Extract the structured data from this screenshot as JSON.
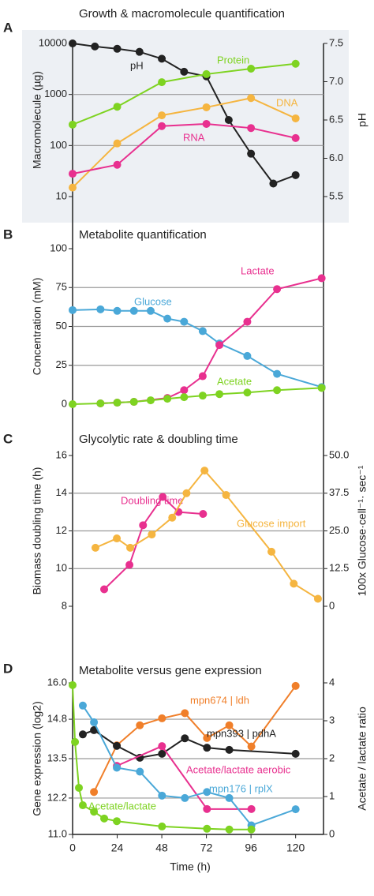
{
  "chart_data": [
    {
      "type": "line",
      "letter": "A",
      "title": "Growth & macromolecule quantification",
      "ylabel": "Macromolecule (µg)",
      "y2label": "pH",
      "ylog": true,
      "xlim": [
        0,
        135
      ],
      "ylim": [
        10,
        10000
      ],
      "yticks": [
        10,
        100,
        1000,
        10000
      ],
      "y2lim": [
        5.5,
        7.5
      ],
      "y2ticks": [
        5.5,
        {
          "value": 6.0,
          "label": "6.0"
        },
        6.5,
        {
          "value": 7.0,
          "label": "7.0"
        },
        7.5
      ],
      "grid": true,
      "series": [
        {
          "name": "pH",
          "color": "#222222",
          "axis": "y2",
          "x": [
            0,
            12,
            24,
            36,
            48,
            60,
            72,
            84,
            96,
            108,
            120
          ],
          "values": [
            7.5,
            7.46,
            7.43,
            7.39,
            7.3,
            7.13,
            7.07,
            6.5,
            6.06,
            5.67,
            5.78
          ]
        },
        {
          "name": "Protein",
          "color": "#7ed321",
          "x": [
            0,
            24,
            48,
            72,
            96,
            120
          ],
          "values": [
            257,
            575,
            1740,
            2500,
            3200,
            4000
          ]
        },
        {
          "name": "DNA",
          "color": "#f5b540",
          "x": [
            0,
            24,
            48,
            72,
            96,
            120
          ],
          "values": [
            15,
            110,
            390,
            560,
            850,
            340
          ]
        },
        {
          "name": "RNA",
          "color": "#e8308f",
          "x": [
            0,
            24,
            48,
            72,
            96,
            120
          ],
          "values": [
            28,
            42,
            240,
            265,
            220,
            140
          ]
        }
      ]
    },
    {
      "type": "line",
      "letter": "B",
      "title": "Metabolite quantification",
      "ylabel": "Concentration (mM)",
      "xlim": [
        0,
        135
      ],
      "ylim": [
        0,
        100
      ],
      "yticks": [
        0,
        25,
        50,
        75,
        100
      ],
      "grid": true,
      "series": [
        {
          "name": "Glucose",
          "color": "#4aa8d8",
          "x": [
            0,
            15,
            24,
            33,
            42,
            51,
            60,
            70,
            79,
            94,
            110,
            134
          ],
          "values": [
            60.5,
            61,
            60,
            60,
            60,
            55,
            53,
            47,
            39,
            31,
            19.5,
            11
          ]
        },
        {
          "name": "Lactate",
          "color": "#e8308f",
          "x": [
            15,
            24,
            33,
            51,
            60,
            70,
            79,
            94,
            110,
            134
          ],
          "values": [
            0.5,
            1,
            1.5,
            4,
            9,
            18,
            38,
            53,
            74,
            81
          ]
        },
        {
          "name": "Acetate",
          "color": "#7ed321",
          "x": [
            0,
            15,
            24,
            33,
            42,
            51,
            60,
            70,
            79,
            94,
            110,
            134
          ],
          "values": [
            0,
            0.5,
            1,
            1.5,
            2.5,
            3.5,
            4.5,
            5.5,
            6.5,
            7.5,
            9,
            10.5
          ]
        }
      ]
    },
    {
      "type": "line",
      "letter": "C",
      "title": "Glycolytic rate & doubling time",
      "ylabel": "Biomass doubling time (h)",
      "y2label": "100x Glucose·cell⁻¹· sec⁻¹",
      "xlim": [
        0,
        135
      ],
      "ylim": [
        8,
        16
      ],
      "yticks": [
        8,
        10,
        12,
        14,
        16
      ],
      "y2lim": [
        0,
        50
      ],
      "y2ticks": [
        0,
        12.5,
        {
          "value": 25,
          "label": "25.0"
        },
        37.5,
        {
          "value": 50,
          "label": "50.0"
        }
      ],
      "grid": true,
      "series": [
        {
          "name": "Doubling time",
          "color": "#e8308f",
          "x": [
            17,
            30.6,
            37.9,
            48.5,
            57,
            70.2
          ],
          "values": [
            8.9,
            10.2,
            12.3,
            13.8,
            13,
            12.9
          ]
        },
        {
          "name": "Glucose import",
          "color": "#f5b540",
          "axis": "y2",
          "x": [
            12.3,
            23.8,
            31,
            42.6,
            53.6,
            61.3,
            71,
            82.6,
            107,
            119,
            132
          ],
          "values": [
            19.4,
            22.5,
            19.4,
            23.8,
            29.4,
            37.5,
            45,
            36.9,
            18.1,
            7.5,
            2.5
          ]
        }
      ]
    },
    {
      "type": "line",
      "letter": "D",
      "title": "Metabolite versus gene expression",
      "ylabel": "Gene expression (log2)",
      "y2label": "Acetate / lactate ratio",
      "xlabel": "Time (h)",
      "xlim": [
        0,
        135
      ],
      "xticks": [
        0,
        24,
        48,
        72,
        96,
        120
      ],
      "ylim": [
        11,
        16
      ],
      "yticks": [
        {
          "value": 11,
          "label": "11.0"
        },
        12.2,
        13.5,
        14.8,
        {
          "value": 16,
          "label": "16.0"
        }
      ],
      "y2lim": [
        0,
        4
      ],
      "y2ticks": [
        0,
        1,
        2,
        3,
        4
      ],
      "grid": true,
      "series": [
        {
          "name": "mpn674 | ldh",
          "color": "#f07f2a",
          "x": [
            11.5,
            23.8,
            36.2,
            48.1,
            60.4,
            72.3,
            84.3,
            96.2,
            120
          ],
          "values": [
            12.4,
            13.94,
            14.6,
            14.83,
            15.0,
            14.18,
            14.6,
            13.9,
            15.9
          ]
        },
        {
          "name": "mpn393 | pdhA",
          "color": "#222222",
          "x": [
            5.5,
            11.5,
            23.8,
            36.2,
            48.1,
            60.4,
            72.3,
            84.3,
            120
          ],
          "values": [
            14.3,
            14.44,
            13.92,
            13.53,
            13.66,
            14.17,
            13.86,
            13.79,
            13.66
          ]
        },
        {
          "name": "Acetate/lactate aerobic",
          "color": "#e8308f",
          "axis": "y2",
          "x": [
            23.8,
            48.1,
            72.3,
            96.2
          ],
          "values": [
            1.81,
            2.33,
            0.67,
            0.67
          ]
        },
        {
          "name": "mpn176 | rplX",
          "color": "#4aa8d8",
          "x": [
            5.5,
            11.5,
            23.8,
            36.2,
            48.1,
            60.4,
            72.3,
            84.3,
            96.2,
            120
          ],
          "values": [
            15.25,
            14.7,
            13.2,
            13.07,
            12.28,
            12.2,
            12.4,
            12.2,
            11.3,
            11.83
          ]
        },
        {
          "name": "Acetate/lactate",
          "color": "#7ed321",
          "axis": "y2",
          "x": [
            0,
            1.3,
            3.4,
            5.5,
            11.5,
            17,
            23.8,
            48.1,
            72.3,
            84.3,
            96.2
          ],
          "values": [
            3.94,
            2.44,
            1.23,
            0.77,
            0.6,
            0.42,
            0.35,
            0.21,
            0.15,
            0.13,
            0.13
          ]
        }
      ]
    }
  ]
}
